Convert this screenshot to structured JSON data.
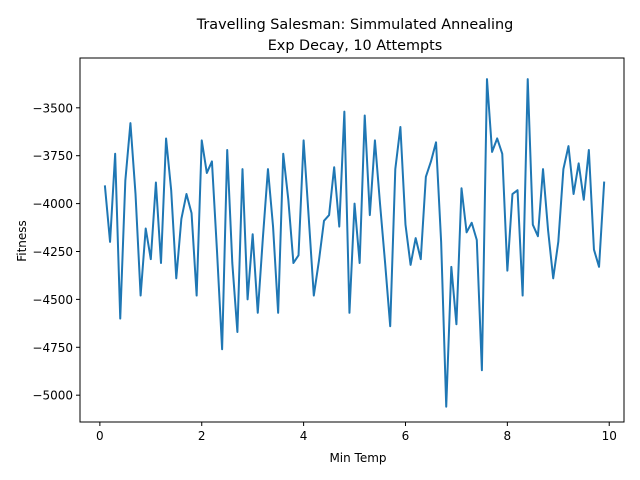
{
  "chart_data": {
    "type": "line",
    "title_lines": [
      "Travelling Salesman: Simmulated Annealing",
      "Exp Decay, 10 Attempts"
    ],
    "xlabel": "Min Temp",
    "ylabel": "Fitness",
    "xlim": [
      -0.39,
      10.29
    ],
    "ylim": [
      -5140,
      -3240
    ],
    "xticks": [
      0,
      2,
      4,
      6,
      8,
      10
    ],
    "yticks": [
      -5000,
      -4750,
      -4500,
      -4250,
      -4000,
      -3750,
      -3500
    ],
    "xtick_labels": [
      "0",
      "2",
      "4",
      "6",
      "8",
      "10"
    ],
    "ytick_labels": [
      "−5000",
      "−4750",
      "−4500",
      "−4250",
      "−4000",
      "−3750",
      "−3500"
    ],
    "grid": false,
    "series_color": "#1f77b4",
    "series": [
      {
        "x": [
          0.1,
          0.2,
          0.3,
          0.4,
          0.5,
          0.6,
          0.7,
          0.8,
          0.9,
          1.0,
          1.1,
          1.2,
          1.3,
          1.4,
          1.5,
          1.6,
          1.7,
          1.8,
          1.9,
          2.0,
          2.1,
          2.2,
          2.3,
          2.4,
          2.5,
          2.6,
          2.7,
          2.8,
          2.9,
          3.0,
          3.1,
          3.2,
          3.3,
          3.4,
          3.5,
          3.6,
          3.7,
          3.8,
          3.9,
          4.0,
          4.1,
          4.2,
          4.3,
          4.4,
          4.5,
          4.6,
          4.7,
          4.8,
          4.9,
          5.0,
          5.1,
          5.2,
          5.3,
          5.4,
          5.5,
          5.6,
          5.7,
          5.8,
          5.9,
          6.0,
          6.1,
          6.2,
          6.3,
          6.4,
          6.5,
          6.6,
          6.7,
          6.8,
          6.9,
          7.0,
          7.1,
          7.2,
          7.3,
          7.4,
          7.5,
          7.6,
          7.7,
          7.8,
          7.9,
          8.0,
          8.1,
          8.2,
          8.3,
          8.4,
          8.5,
          8.6,
          8.7,
          8.8,
          8.9,
          9.0,
          9.1,
          9.2,
          9.3,
          9.4,
          9.5,
          9.6,
          9.7,
          9.8,
          9.9
        ],
        "values": [
          -3910,
          -4200,
          -3740,
          -4600,
          -3880,
          -3580,
          -3950,
          -4480,
          -4130,
          -4290,
          -3890,
          -4310,
          -3660,
          -3930,
          -4390,
          -4080,
          -3950,
          -4050,
          -4480,
          -3670,
          -3840,
          -3780,
          -4250,
          -4760,
          -3720,
          -4310,
          -4670,
          -3820,
          -4500,
          -4160,
          -4570,
          -4180,
          -3820,
          -4120,
          -4570,
          -3740,
          -3980,
          -4310,
          -4270,
          -3670,
          -4070,
          -4480,
          -4300,
          -4090,
          -4060,
          -3810,
          -4120,
          -3520,
          -4570,
          -4000,
          -4310,
          -3540,
          -4060,
          -3670,
          -4000,
          -4310,
          -4640,
          -3820,
          -3600,
          -4110,
          -4320,
          -4180,
          -4290,
          -3860,
          -3780,
          -3680,
          -4200,
          -5060,
          -4330,
          -4630,
          -3920,
          -4150,
          -4100,
          -4190,
          -4870,
          -3350,
          -3730,
          -3660,
          -3740,
          -4350,
          -3950,
          -3930,
          -4480,
          -3350,
          -4110,
          -4170,
          -3820,
          -4140,
          -4390,
          -4200,
          -3820,
          -3700,
          -3950,
          -3790,
          -3980,
          -3720,
          -4240,
          -4330,
          -3890
        ]
      }
    ]
  }
}
